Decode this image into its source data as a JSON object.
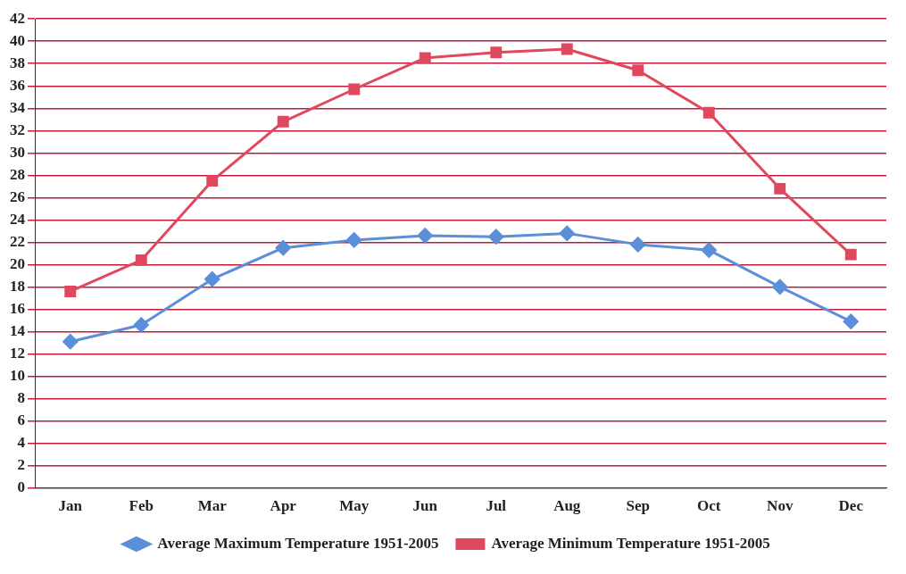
{
  "chart_data": {
    "type": "line",
    "categories": [
      "Jan",
      "Feb",
      "Mar",
      "Apr",
      "May",
      "Jun",
      "Jul",
      "Aug",
      "Sep",
      "Oct",
      "Nov",
      "Dec"
    ],
    "series": [
      {
        "name": "Average Maximum Temperature 1951-2005",
        "color": "#5b8fd9",
        "marker": "diamond",
        "values": [
          13.1,
          14.6,
          18.7,
          21.5,
          22.2,
          22.6,
          22.5,
          22.8,
          21.8,
          21.3,
          18.0,
          14.9
        ]
      },
      {
        "name": "Average Minimum Temperature 1951-2005",
        "color": "#e0485e",
        "marker": "square",
        "values": [
          17.6,
          20.4,
          27.5,
          32.8,
          35.7,
          38.5,
          39.0,
          39.3,
          37.4,
          33.6,
          26.8,
          20.9
        ]
      }
    ],
    "ylim": [
      0,
      42
    ],
    "yticks": [
      0,
      2,
      4,
      6,
      8,
      10,
      12,
      14,
      16,
      18,
      20,
      22,
      24,
      26,
      28,
      30,
      32,
      34,
      36,
      38,
      40,
      42
    ],
    "grid": "y",
    "legend": "bottom",
    "line_style": "solid"
  }
}
